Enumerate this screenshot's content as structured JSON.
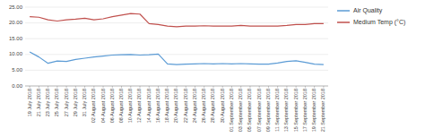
{
  "chart_data": {
    "type": "line",
    "categories": [
      "19 July 2018",
      "21 July 2018",
      "23 July 2018",
      "25 July 2018",
      "27 July 2018",
      "29 July 2018",
      "31 July 2018",
      "02 August 2018",
      "04 August 2018",
      "06 August 2018",
      "08 August 2018",
      "10 August 2018",
      "12 August 2018",
      "14 August 2018",
      "16 August 2018",
      "18 August 2018",
      "20 August 2018",
      "22 August 2018",
      "24 August 2018",
      "26 August 2018",
      "28 August 2018",
      "30 August 2018",
      "01 September 2018",
      "03 September 2018",
      "05 September 2018",
      "07 September 2018",
      "09 September 2018",
      "11 September 2018",
      "13 September 2018",
      "15 September 2018",
      "17 September 2018",
      "19 September 2018",
      "21 September 2018"
    ],
    "series": [
      {
        "name": "Air Quality",
        "color": "#5b9bd5",
        "values": [
          10.8,
          9.2,
          7.2,
          7.9,
          7.8,
          8.4,
          8.8,
          9.2,
          9.5,
          9.8,
          9.9,
          10.0,
          9.8,
          9.9,
          10.1,
          7.0,
          6.8,
          6.9,
          7.0,
          7.1,
          7.0,
          7.1,
          7.0,
          7.1,
          7.0,
          6.9,
          6.9,
          7.3,
          7.8,
          8.0,
          7.5,
          6.9,
          6.8
        ]
      },
      {
        "name": "Medium Temp (°C)",
        "color": "#c0504d",
        "values": [
          22.0,
          21.8,
          21.0,
          20.6,
          21.0,
          21.2,
          21.5,
          21.0,
          21.3,
          22.0,
          22.5,
          23.0,
          22.8,
          19.8,
          19.5,
          19.0,
          18.8,
          19.0,
          19.0,
          19.1,
          19.0,
          19.0,
          19.0,
          19.2,
          19.0,
          19.0,
          19.0,
          19.0,
          19.2,
          19.5,
          19.5,
          19.8,
          19.8
        ]
      }
    ],
    "ylim": [
      0.0,
      25.0
    ],
    "yticks": [
      {
        "value": 0.0,
        "label": "0.00"
      },
      {
        "value": 5.0,
        "label": "5.00"
      },
      {
        "value": 10.0,
        "label": "10.00"
      },
      {
        "value": 15.0,
        "label": "15.00"
      },
      {
        "value": 20.0,
        "label": "20.00"
      },
      {
        "value": 25.0,
        "label": "25.00"
      }
    ],
    "grid": true,
    "legend": "right"
  }
}
